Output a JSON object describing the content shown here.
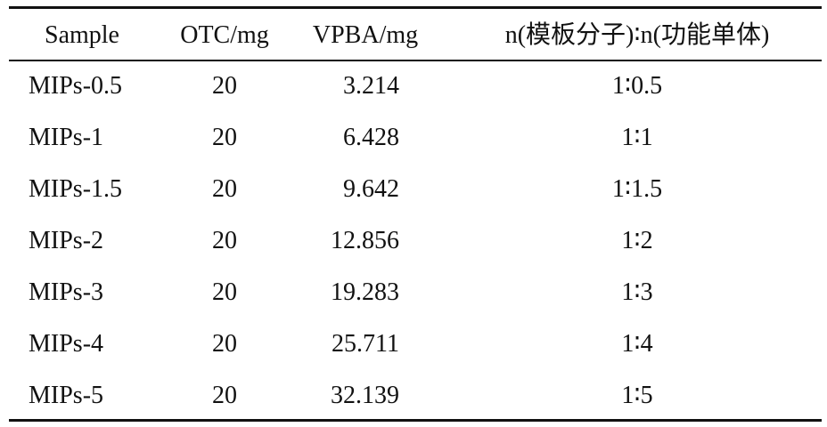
{
  "table": {
    "header": [
      "Sample",
      "OTC/mg",
      "VPBA/mg",
      "n(模板分子)∶n(功能单体)"
    ],
    "rows": [
      [
        "MIPs-0.5",
        20,
        "3.214",
        "1∶0.5"
      ],
      [
        "MIPs-1",
        20,
        "6.428",
        "1∶1"
      ],
      [
        "MIPs-1.5",
        20,
        "9.642",
        "1∶1.5"
      ],
      [
        "MIPs-2",
        20,
        "12.856",
        "1∶2"
      ],
      [
        "MIPs-3",
        20,
        "19.283",
        "1∶3"
      ],
      [
        "MIPs-4",
        20,
        "25.711",
        "1∶4"
      ],
      [
        "MIPs-5",
        20,
        "32.139",
        "1∶5"
      ]
    ]
  }
}
